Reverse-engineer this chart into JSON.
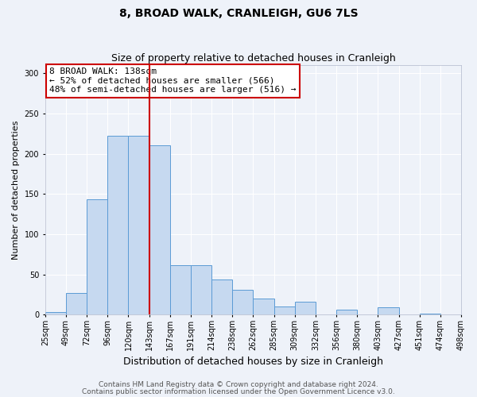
{
  "title": "8, BROAD WALK, CRANLEIGH, GU6 7LS",
  "subtitle": "Size of property relative to detached houses in Cranleigh",
  "xlabel": "Distribution of detached houses by size in Cranleigh",
  "ylabel": "Number of detached properties",
  "bar_values": [
    3,
    27,
    143,
    222,
    222,
    210,
    61,
    61,
    44,
    31,
    20,
    10,
    16,
    0,
    6,
    0,
    9,
    0,
    1,
    0
  ],
  "bar_labels": [
    "25sqm",
    "49sqm",
    "72sqm",
    "96sqm",
    "120sqm",
    "143sqm",
    "167sqm",
    "191sqm",
    "214sqm",
    "238sqm",
    "262sqm",
    "285sqm",
    "309sqm",
    "332sqm",
    "356sqm",
    "380sqm",
    "403sqm",
    "427sqm",
    "451sqm",
    "474sqm",
    "498sqm"
  ],
  "bar_color": "#c6d9f0",
  "bar_edge_color": "#5b9bd5",
  "vline_index": 5,
  "vline_color": "#cc0000",
  "annotation_text": "8 BROAD WALK: 138sqm\n← 52% of detached houses are smaller (566)\n48% of semi-detached houses are larger (516) →",
  "annotation_box_color": "#ffffff",
  "annotation_box_edge_color": "#cc0000",
  "ylim": [
    0,
    310
  ],
  "yticks": [
    0,
    50,
    100,
    150,
    200,
    250,
    300
  ],
  "footer_line1": "Contains HM Land Registry data © Crown copyright and database right 2024.",
  "footer_line2": "Contains public sector information licensed under the Open Government Licence v3.0.",
  "background_color": "#eef2f9",
  "grid_color": "#ffffff",
  "title_fontsize": 10,
  "subtitle_fontsize": 9,
  "xlabel_fontsize": 9,
  "ylabel_fontsize": 8,
  "tick_fontsize": 7,
  "footer_fontsize": 6.5,
  "annotation_fontsize": 8
}
